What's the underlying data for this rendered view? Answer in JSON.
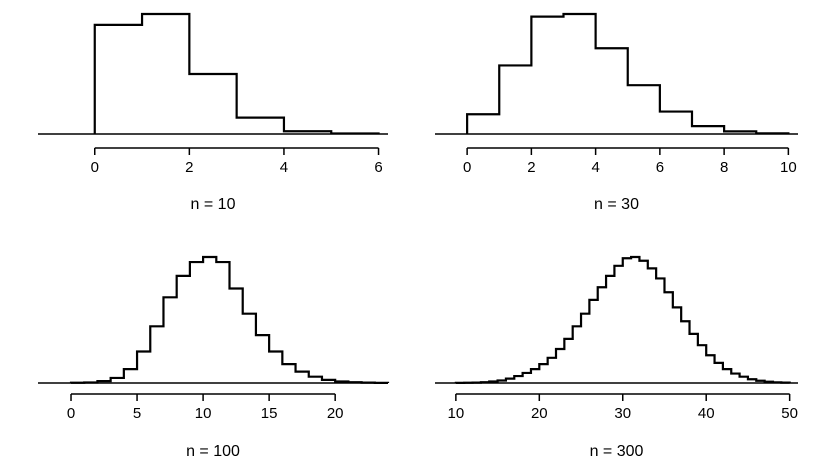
{
  "chart_data": [
    {
      "type": "histogram",
      "label": "n = 10",
      "xlim": [
        -1.2,
        6.2
      ],
      "xticks": [
        0,
        2,
        4,
        6
      ],
      "bin_edges": [
        0,
        1,
        2,
        3,
        4,
        5,
        6
      ],
      "values": [
        0.8,
        0.88,
        0.44,
        0.12,
        0.02,
        0.004
      ]
    },
    {
      "type": "histogram",
      "label": "n = 30",
      "xlim": [
        -1,
        10.3
      ],
      "xticks": [
        0,
        2,
        4,
        6,
        8,
        10
      ],
      "bin_edges": [
        0,
        1,
        2,
        3,
        4,
        5,
        6,
        7,
        8,
        9,
        10
      ],
      "values": [
        0.15,
        0.52,
        0.89,
        0.91,
        0.65,
        0.37,
        0.17,
        0.06,
        0.02,
        0.005
      ]
    },
    {
      "type": "histogram",
      "label": "n = 100",
      "xlim": [
        -2.5,
        24
      ],
      "xticks": [
        0,
        5,
        10,
        15,
        20
      ],
      "bin_edges": [
        0,
        1,
        2,
        3,
        4,
        5,
        6,
        7,
        8,
        9,
        10,
        11,
        12,
        13,
        14,
        15,
        16,
        17,
        18,
        19,
        20,
        21,
        22,
        23,
        24
      ],
      "values": [
        0.002,
        0.004,
        0.015,
        0.04,
        0.11,
        0.25,
        0.45,
        0.68,
        0.85,
        0.96,
        1.0,
        0.96,
        0.75,
        0.55,
        0.38,
        0.25,
        0.15,
        0.09,
        0.05,
        0.025,
        0.012,
        0.006,
        0.003,
        0.001
      ]
    },
    {
      "type": "histogram",
      "label": "n = 300",
      "xlim": [
        7.5,
        51
      ],
      "xticks": [
        10,
        20,
        30,
        40,
        50
      ],
      "bin_edges": [
        10,
        11,
        12,
        13,
        14,
        15,
        16,
        17,
        18,
        19,
        20,
        21,
        22,
        23,
        24,
        25,
        26,
        27,
        28,
        29,
        30,
        31,
        32,
        33,
        34,
        35,
        36,
        37,
        38,
        39,
        40,
        41,
        42,
        43,
        44,
        45,
        46,
        47,
        48,
        49,
        50
      ],
      "values": [
        0.001,
        0.002,
        0.003,
        0.006,
        0.012,
        0.02,
        0.035,
        0.055,
        0.08,
        0.11,
        0.15,
        0.2,
        0.27,
        0.35,
        0.45,
        0.55,
        0.66,
        0.76,
        0.85,
        0.93,
        0.99,
        1.0,
        0.97,
        0.91,
        0.83,
        0.72,
        0.6,
        0.49,
        0.39,
        0.3,
        0.22,
        0.16,
        0.11,
        0.075,
        0.05,
        0.03,
        0.018,
        0.01,
        0.005,
        0.003
      ]
    }
  ]
}
